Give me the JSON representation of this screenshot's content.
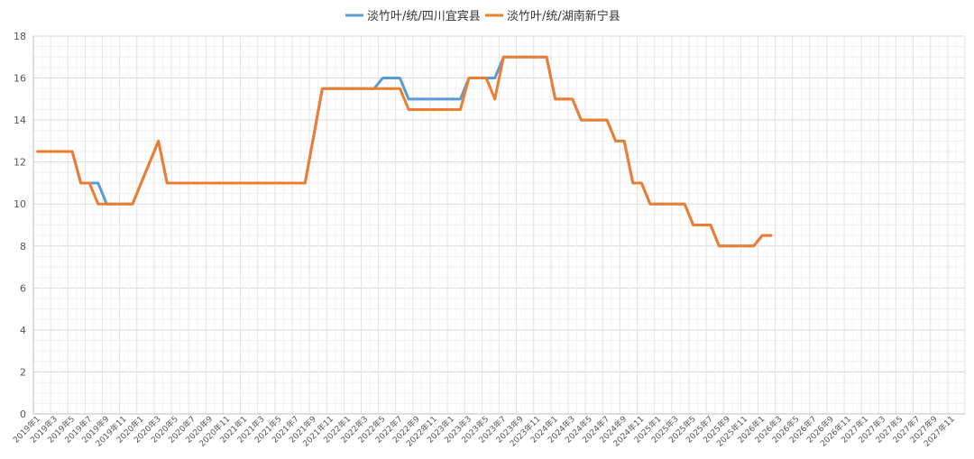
{
  "chart_data": {
    "type": "line",
    "title": "",
    "xlabel": "",
    "ylabel": "",
    "ylim": [
      0,
      18
    ],
    "yticks": [
      0,
      2,
      4,
      6,
      8,
      10,
      12,
      14,
      16,
      18
    ],
    "grid": true,
    "legend_position": "top",
    "x_tick_labels": [
      "2019年1",
      "2019年3",
      "2019年5",
      "2019年7",
      "2019年9",
      "2019年11",
      "2020年1",
      "2020年3",
      "2020年5",
      "2020年7",
      "2020年9",
      "2020年11",
      "2021年1",
      "2021年3",
      "2021年5",
      "2021年7",
      "2021年9",
      "2021年11",
      "2022年1",
      "2022年3",
      "2022年5",
      "2022年7",
      "2022年9",
      "2022年11",
      "2023年1",
      "2023年3",
      "2023年5",
      "2023年7",
      "2023年9",
      "2023年11",
      "2024年1",
      "2024年3",
      "2024年5",
      "2024年7",
      "2024年9",
      "2024年11",
      "2025年1",
      "2025年3",
      "2025年5",
      "2025年7",
      "2025年9",
      "2025年11",
      "2026年1",
      "2026年3",
      "2026年5",
      "2026年7",
      "2026年9",
      "2026年11",
      "2027年1",
      "2027年3",
      "2027年5",
      "2027年7",
      "2027年9",
      "2027年11"
    ],
    "series": [
      {
        "name": "淡竹叶/统/四川宜宾县",
        "color": "#5B9BD5",
        "points": [
          [
            "2019-01",
            12.5
          ],
          [
            "2019-05",
            12.5
          ],
          [
            "2019-06",
            11
          ],
          [
            "2019-08",
            11
          ],
          [
            "2019-09",
            10
          ],
          [
            "2019-12",
            10
          ],
          [
            "2020-03",
            13
          ],
          [
            "2020-04",
            11
          ],
          [
            "2021-08",
            11
          ],
          [
            "2021-10",
            15.5
          ],
          [
            "2022-04",
            15.5
          ],
          [
            "2022-05",
            16
          ],
          [
            "2022-07",
            16
          ],
          [
            "2022-08",
            15
          ],
          [
            "2023-02",
            15
          ],
          [
            "2023-03",
            16
          ],
          [
            "2023-06",
            16
          ],
          [
            "2023-07",
            17
          ],
          [
            "2023-12",
            17
          ],
          [
            "2024-01",
            15
          ],
          [
            "2024-03",
            15
          ],
          [
            "2024-04",
            14
          ],
          [
            "2024-07",
            14
          ],
          [
            "2024-08",
            13
          ],
          [
            "2024-09",
            13
          ],
          [
            "2024-10",
            11
          ],
          [
            "2024-11",
            11
          ],
          [
            "2024-12",
            10
          ],
          [
            "2025-04",
            10
          ],
          [
            "2025-05",
            9
          ],
          [
            "2025-07",
            9
          ],
          [
            "2025-08",
            8
          ],
          [
            "2025-12",
            8
          ],
          [
            "2026-01",
            8.5
          ],
          [
            "2026-02",
            8.5
          ]
        ]
      },
      {
        "name": "淡竹叶/统/湖南新宁县",
        "color": "#ED7D31",
        "points": [
          [
            "2019-01",
            12.5
          ],
          [
            "2019-05",
            12.5
          ],
          [
            "2019-06",
            11
          ],
          [
            "2019-07",
            11
          ],
          [
            "2019-08",
            10
          ],
          [
            "2019-12",
            10
          ],
          [
            "2020-03",
            13
          ],
          [
            "2020-04",
            11
          ],
          [
            "2021-08",
            11
          ],
          [
            "2021-10",
            15.5
          ],
          [
            "2022-07",
            15.5
          ],
          [
            "2022-08",
            14.5
          ],
          [
            "2023-02",
            14.5
          ],
          [
            "2023-03",
            16
          ],
          [
            "2023-05",
            16
          ],
          [
            "2023-06",
            15
          ],
          [
            "2023-07",
            17
          ],
          [
            "2023-12",
            17
          ],
          [
            "2024-01",
            15
          ],
          [
            "2024-03",
            15
          ],
          [
            "2024-04",
            14
          ],
          [
            "2024-07",
            14
          ],
          [
            "2024-08",
            13
          ],
          [
            "2024-09",
            13
          ],
          [
            "2024-10",
            11
          ],
          [
            "2024-11",
            11
          ],
          [
            "2024-12",
            10
          ],
          [
            "2025-04",
            10
          ],
          [
            "2025-05",
            9
          ],
          [
            "2025-07",
            9
          ],
          [
            "2025-08",
            8
          ],
          [
            "2025-12",
            8
          ],
          [
            "2026-01",
            8.5
          ],
          [
            "2026-02",
            8.5
          ]
        ]
      }
    ]
  }
}
